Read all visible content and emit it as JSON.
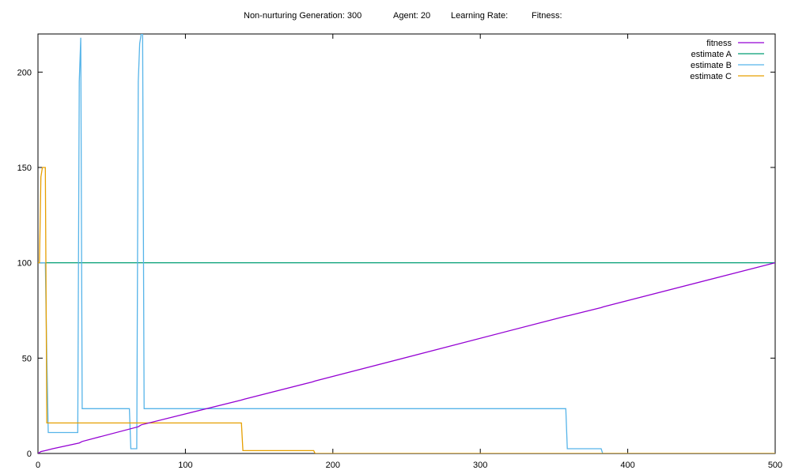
{
  "header": {
    "generation": "Non-nurturing Generation: 300",
    "agent": "Agent: 20",
    "learning_rate": "Learning Rate:",
    "fitness": "Fitness:"
  },
  "chart_data": {
    "type": "line",
    "title": "",
    "xlabel": "",
    "ylabel": "",
    "xlim": [
      0,
      500
    ],
    "ylim": [
      0,
      220
    ],
    "x_ticks": [
      0,
      100,
      200,
      300,
      400,
      500
    ],
    "y_ticks": [
      0,
      50,
      100,
      150,
      200
    ],
    "grid": false,
    "legend_position": "top-right",
    "series": [
      {
        "name": "fitness",
        "color": "#9400d3",
        "x": [
          0,
          2,
          5,
          10,
          28,
          30,
          68,
          70,
          138,
          140,
          186,
          188,
          358,
          360,
          382,
          384,
          500
        ],
        "y": [
          0,
          1,
          1.5,
          2.5,
          5.5,
          6.3,
          14,
          15,
          28,
          28.5,
          37.5,
          38,
          72,
          72.3,
          76.5,
          77,
          100
        ]
      },
      {
        "name": "estimate A",
        "color": "#009e73",
        "x": [
          0,
          500
        ],
        "y": [
          100,
          100
        ]
      },
      {
        "name": "estimate B",
        "color": "#56b4e9",
        "x": [
          0,
          5,
          6,
          7,
          27,
          28,
          29,
          30,
          62,
          63,
          67,
          68,
          69,
          70,
          71,
          72,
          358,
          359,
          382,
          383,
          500
        ],
        "y": [
          100,
          100,
          50,
          11,
          11,
          195,
          218,
          23.5,
          23.5,
          2.5,
          2.5,
          195,
          215,
          220,
          220,
          23.5,
          23.5,
          2.5,
          2.5,
          0,
          0
        ]
      },
      {
        "name": "estimate C",
        "color": "#e69f00",
        "x": [
          0,
          1,
          2,
          3,
          5,
          6,
          138,
          139,
          187,
          188,
          500
        ],
        "y": [
          100,
          100,
          145,
          150,
          150,
          16,
          16,
          1.5,
          1.5,
          0,
          0
        ]
      }
    ]
  }
}
